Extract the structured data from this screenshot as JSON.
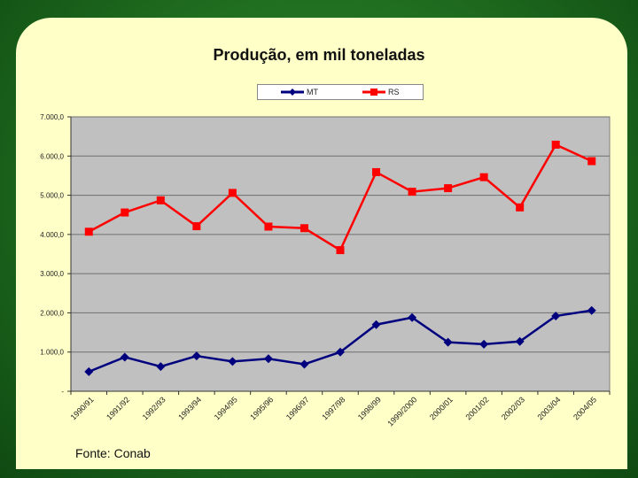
{
  "source": "Fonte: Conab",
  "chart_data": {
    "type": "line",
    "title": "Produção, em mil toneladas",
    "categories": [
      "1990/91",
      "1991/92",
      "1992/93",
      "1993/94",
      "1994/95",
      "1995/96",
      "1996/97",
      "1997/98",
      "1998/99",
      "1999/2000",
      "2000/01",
      "2001/02",
      "2002/03",
      "2003/04",
      "2004/05"
    ],
    "y_tick_labels": [
      "-",
      "1.000,0",
      "2.000,0",
      "3.000,0",
      "4.000,0",
      "5.000,0",
      "6.000,0",
      "7.000,0"
    ],
    "ylim": [
      0,
      7000
    ],
    "grid": true,
    "legend_position": "top-center",
    "series": [
      {
        "name": "MT",
        "color": "#00007f",
        "marker": "diamond",
        "values": [
          500,
          870,
          630,
          900,
          760,
          830,
          690,
          1000,
          1700,
          1880,
          1250,
          1200,
          1270,
          1920,
          2060
        ]
      },
      {
        "name": "RS",
        "color": "#ff0000",
        "marker": "square",
        "values": [
          4070,
          4560,
          4870,
          4210,
          5060,
          4200,
          4160,
          3600,
          5590,
          5090,
          5180,
          5460,
          4690,
          6290,
          5870
        ]
      }
    ]
  }
}
